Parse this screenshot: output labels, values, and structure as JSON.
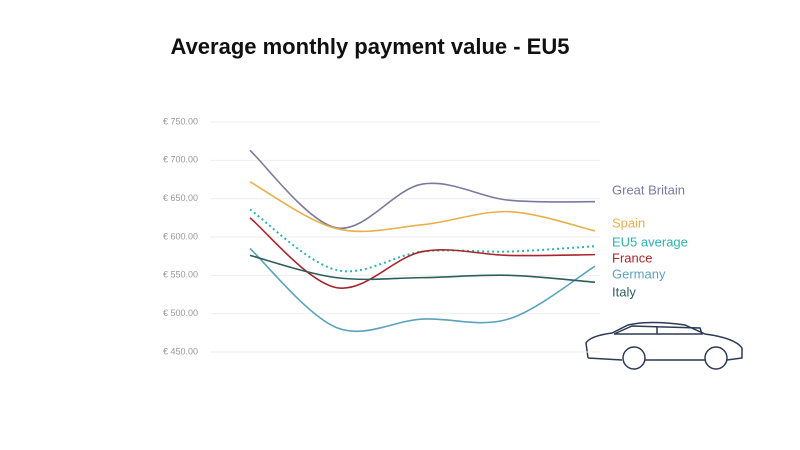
{
  "chart_data": {
    "type": "line",
    "title": "Average monthly payment value - EU5",
    "categories": [
      null,
      null,
      null,
      null,
      null
    ],
    "series": [
      {
        "name": "Great Britain",
        "color": "#7b7a9e",
        "values": [
          713,
          612,
          669,
          648,
          646
        ]
      },
      {
        "name": "Spain",
        "color": "#e8b04a",
        "values": [
          672,
          611,
          616,
          633,
          608
        ]
      },
      {
        "name": "EU5 average",
        "color": "#2bb3b1",
        "style": "dotted",
        "values": [
          636,
          557,
          581,
          581,
          588
        ]
      },
      {
        "name": "France",
        "color": "#a8262b",
        "values": [
          625,
          534,
          581,
          576,
          577
        ]
      },
      {
        "name": "Germany",
        "color": "#5ba3bf",
        "values": [
          585,
          482,
          493,
          493,
          562
        ]
      },
      {
        "name": "Italy",
        "color": "#2e5e5a",
        "values": [
          576,
          547,
          547,
          550,
          541
        ]
      }
    ],
    "ylim": [
      450,
      750
    ],
    "yticks": [
      {
        "value": 450,
        "label": "€ 450.00"
      },
      {
        "value": 500,
        "label": "€ 500.00"
      },
      {
        "value": 550,
        "label": "€ 550.00"
      },
      {
        "value": 600,
        "label": "€ 600.00"
      },
      {
        "value": 650,
        "label": "€ 650.00"
      },
      {
        "value": 700,
        "label": "€ 700.00"
      },
      {
        "value": 750,
        "label": "€ 750.00"
      }
    ],
    "grid": true
  }
}
